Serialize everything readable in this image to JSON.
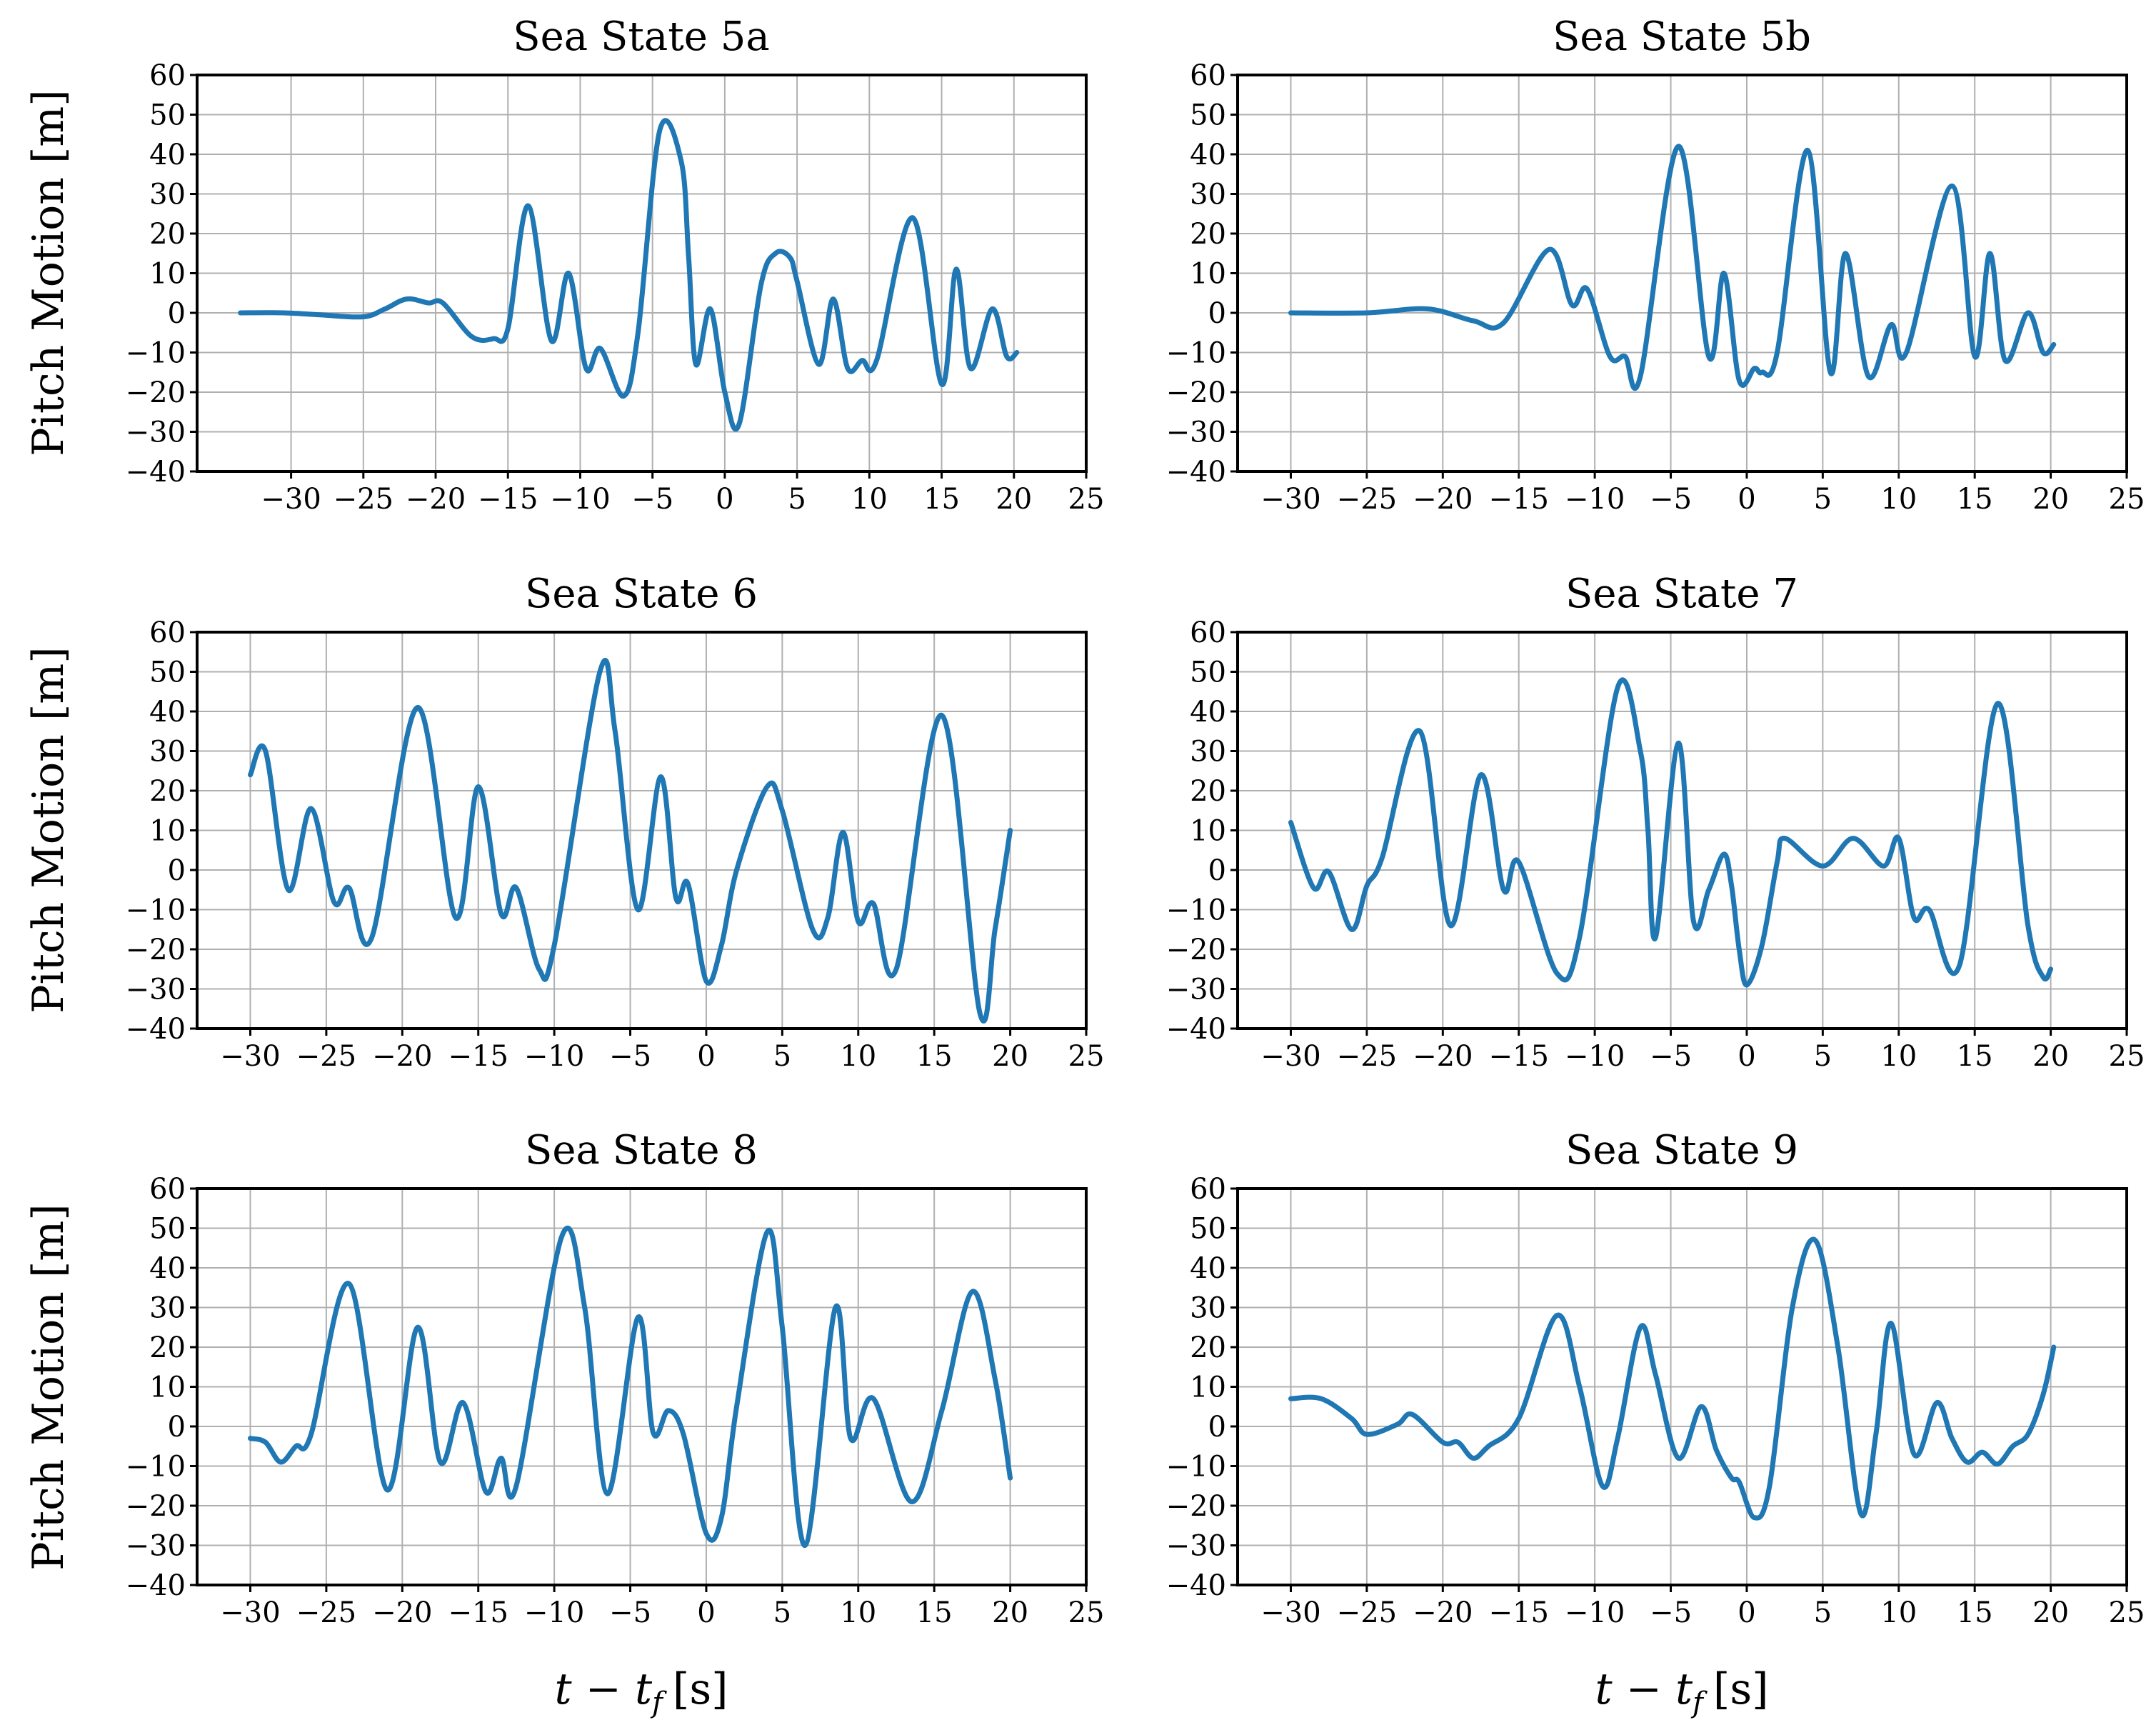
{
  "figure": {
    "ylabel": "Pitch Motion [m]",
    "xlabel": "t − t_f [s]",
    "xlabel_main": "t − t",
    "xlabel_sub": "f",
    "xlabel_units": "[s]",
    "line_color": "#1f77b4"
  },
  "chart_data": [
    {
      "type": "line",
      "title": "Sea State 5a",
      "xlim": [
        -36.5,
        25
      ],
      "ylim": [
        -40,
        60
      ],
      "xticks": [
        -30,
        -25,
        -20,
        -15,
        -10,
        -5,
        0,
        5,
        10,
        15,
        20,
        25
      ],
      "yticks": [
        -40,
        -30,
        -20,
        -10,
        0,
        10,
        20,
        30,
        40,
        50,
        60
      ],
      "grid": true,
      "series": [
        {
          "name": "pitch",
          "points": [
            [
              -33.5,
              0
            ],
            [
              -30.5,
              0
            ],
            [
              -28,
              -0.5
            ],
            [
              -25,
              -1
            ],
            [
              -23.5,
              1
            ],
            [
              -22,
              3.5
            ],
            [
              -20.5,
              2.5
            ],
            [
              -19.5,
              2.5
            ],
            [
              -17.5,
              -6
            ],
            [
              -16,
              -6.5
            ],
            [
              -15,
              -4
            ],
            [
              -13.6,
              27
            ],
            [
              -12,
              -7
            ],
            [
              -10.8,
              10
            ],
            [
              -9.6,
              -14
            ],
            [
              -8.6,
              -9
            ],
            [
              -7,
              -21
            ],
            [
              -6,
              -5
            ],
            [
              -4.5,
              46
            ],
            [
              -3,
              38
            ],
            [
              -2.5,
              14
            ],
            [
              -2,
              -13
            ],
            [
              -1,
              1
            ],
            [
              0,
              -20
            ],
            [
              1,
              -28
            ],
            [
              2.5,
              7
            ],
            [
              3.5,
              15
            ],
            [
              4.5,
              14
            ],
            [
              5,
              8
            ],
            [
              6.5,
              -13
            ],
            [
              7.5,
              3.5
            ],
            [
              8.5,
              -14
            ],
            [
              9.5,
              -12
            ],
            [
              10.5,
              -12
            ],
            [
              13,
              24
            ],
            [
              15,
              -18
            ],
            [
              16,
              11
            ],
            [
              17,
              -14
            ],
            [
              18.5,
              1
            ],
            [
              19.5,
              -11
            ],
            [
              20.2,
              -10
            ]
          ]
        }
      ]
    },
    {
      "type": "line",
      "title": "Sea State 5b",
      "xlim": [
        -33.5,
        25
      ],
      "ylim": [
        -40,
        60
      ],
      "xticks": [
        -30,
        -25,
        -20,
        -15,
        -10,
        -5,
        0,
        5,
        10,
        15,
        20,
        25
      ],
      "yticks": [
        -40,
        -30,
        -20,
        -10,
        0,
        10,
        20,
        30,
        40,
        50,
        60
      ],
      "grid": true,
      "series": [
        {
          "name": "pitch",
          "points": [
            [
              -30,
              0
            ],
            [
              -25,
              0
            ],
            [
              -21,
              1
            ],
            [
              -18,
              -2
            ],
            [
              -16,
              -2.5
            ],
            [
              -13,
              16
            ],
            [
              -11.5,
              2
            ],
            [
              -10.5,
              6
            ],
            [
              -9,
              -11
            ],
            [
              -8,
              -11
            ],
            [
              -7,
              -16
            ],
            [
              -4.5,
              42
            ],
            [
              -2.5,
              -11
            ],
            [
              -1.5,
              10
            ],
            [
              -0.5,
              -17
            ],
            [
              0.5,
              -14
            ],
            [
              1,
              -15
            ],
            [
              2,
              -10
            ],
            [
              4,
              41
            ],
            [
              5.5,
              -15
            ],
            [
              6.5,
              15
            ],
            [
              8,
              -16
            ],
            [
              9.5,
              -3
            ],
            [
              10.5,
              -10
            ],
            [
              13.5,
              32
            ],
            [
              15,
              -11
            ],
            [
              16,
              15
            ],
            [
              17,
              -12
            ],
            [
              18.5,
              0
            ],
            [
              19.5,
              -10
            ],
            [
              20.2,
              -8
            ]
          ]
        }
      ]
    },
    {
      "type": "line",
      "title": "Sea State 6",
      "xlim": [
        -33.5,
        25
      ],
      "ylim": [
        -40,
        60
      ],
      "xticks": [
        -30,
        -25,
        -20,
        -15,
        -10,
        -5,
        0,
        5,
        10,
        15,
        20,
        25
      ],
      "yticks": [
        -40,
        -30,
        -20,
        -10,
        0,
        10,
        20,
        30,
        40,
        50,
        60
      ],
      "grid": true,
      "series": [
        {
          "name": "pitch",
          "points": [
            [
              -30,
              24
            ],
            [
              -29,
              30
            ],
            [
              -27.5,
              -5
            ],
            [
              -26,
              15.5
            ],
            [
              -24.5,
              -8
            ],
            [
              -23.5,
              -4.5
            ],
            [
              -22,
              -17
            ],
            [
              -19,
              41
            ],
            [
              -16.5,
              -12
            ],
            [
              -15,
              21
            ],
            [
              -13.5,
              -11
            ],
            [
              -12.5,
              -4.5
            ],
            [
              -11,
              -25
            ],
            [
              -10,
              -19
            ],
            [
              -7,
              50
            ],
            [
              -6,
              35
            ],
            [
              -4.5,
              -10
            ],
            [
              -3,
              23.5
            ],
            [
              -2,
              -7
            ],
            [
              -1.2,
              -3.5
            ],
            [
              0,
              -28
            ],
            [
              1,
              -19
            ],
            [
              2,
              0
            ],
            [
              4,
              21
            ],
            [
              5,
              15
            ],
            [
              7,
              -15
            ],
            [
              8,
              -12
            ],
            [
              9,
              9.5
            ],
            [
              10,
              -13
            ],
            [
              11,
              -8.5
            ],
            [
              12.5,
              -25
            ],
            [
              15.5,
              39
            ],
            [
              18,
              -36
            ],
            [
              19,
              -15
            ],
            [
              20,
              10
            ]
          ]
        }
      ]
    },
    {
      "type": "line",
      "title": "Sea State 7",
      "xlim": [
        -33.5,
        25
      ],
      "ylim": [
        -40,
        60
      ],
      "xticks": [
        -30,
        -25,
        -20,
        -15,
        -10,
        -5,
        0,
        5,
        10,
        15,
        20,
        25
      ],
      "yticks": [
        -40,
        -30,
        -20,
        -10,
        0,
        10,
        20,
        30,
        40,
        50,
        60
      ],
      "grid": true,
      "series": [
        {
          "name": "pitch",
          "points": [
            [
              -30,
              12
            ],
            [
              -28.5,
              -4.5
            ],
            [
              -27.5,
              -0.5
            ],
            [
              -26,
              -15
            ],
            [
              -25,
              -4
            ],
            [
              -24,
              3
            ],
            [
              -21.5,
              35
            ],
            [
              -19.5,
              -14
            ],
            [
              -17.5,
              24
            ],
            [
              -16,
              -5
            ],
            [
              -15,
              2
            ],
            [
              -12.5,
              -26
            ],
            [
              -11,
              -17
            ],
            [
              -8.5,
              46
            ],
            [
              -7,
              30
            ],
            [
              -6.5,
              10
            ],
            [
              -6,
              -17
            ],
            [
              -4.5,
              32
            ],
            [
              -3.5,
              -13
            ],
            [
              -2.5,
              -5
            ],
            [
              -1.5,
              4
            ],
            [
              -1,
              -4
            ],
            [
              -0.5,
              -20
            ],
            [
              0,
              -29
            ],
            [
              1,
              -19
            ],
            [
              2,
              2
            ],
            [
              2.5,
              8
            ],
            [
              5,
              1
            ],
            [
              7,
              8
            ],
            [
              9,
              1
            ],
            [
              10,
              8
            ],
            [
              11,
              -12
            ],
            [
              12,
              -10
            ],
            [
              14,
              -24
            ],
            [
              16.5,
              42
            ],
            [
              18.5,
              -14
            ],
            [
              19.5,
              -27
            ],
            [
              20,
              -25
            ]
          ]
        }
      ]
    },
    {
      "type": "line",
      "title": "Sea State 8",
      "xlim": [
        -33.5,
        25
      ],
      "ylim": [
        -40,
        60
      ],
      "xticks": [
        -30,
        -25,
        -20,
        -15,
        -10,
        -5,
        0,
        5,
        10,
        15,
        20,
        25
      ],
      "yticks": [
        -40,
        -30,
        -20,
        -10,
        0,
        10,
        20,
        30,
        40,
        50,
        60
      ],
      "grid": true,
      "series": [
        {
          "name": "pitch",
          "points": [
            [
              -30,
              -3
            ],
            [
              -29,
              -4
            ],
            [
              -28,
              -9
            ],
            [
              -27,
              -5
            ],
            [
              -26,
              -2
            ],
            [
              -23.5,
              36
            ],
            [
              -21,
              -16
            ],
            [
              -19,
              25
            ],
            [
              -17.5,
              -9
            ],
            [
              -16,
              6
            ],
            [
              -14.5,
              -16.5
            ],
            [
              -13.5,
              -8
            ],
            [
              -12.5,
              -15
            ],
            [
              -9.5,
              48
            ],
            [
              -8,
              30
            ],
            [
              -6.5,
              -17
            ],
            [
              -4.5,
              27.5
            ],
            [
              -3.5,
              -1.5
            ],
            [
              -2.5,
              4
            ],
            [
              -1.5,
              -2
            ],
            [
              0,
              -27
            ],
            [
              1,
              -23
            ],
            [
              2,
              5
            ],
            [
              4,
              49
            ],
            [
              5,
              25
            ],
            [
              6.5,
              -30
            ],
            [
              8.5,
              30
            ],
            [
              9.5,
              -3
            ],
            [
              11,
              7
            ],
            [
              13.5,
              -19
            ],
            [
              15.5,
              4
            ],
            [
              17.5,
              34
            ],
            [
              19,
              12
            ],
            [
              20,
              -13
            ]
          ]
        }
      ]
    },
    {
      "type": "line",
      "title": "Sea State 9",
      "xlim": [
        -33.5,
        25
      ],
      "ylim": [
        -40,
        60
      ],
      "xticks": [
        -30,
        -25,
        -20,
        -15,
        -10,
        -5,
        0,
        5,
        10,
        15,
        20,
        25
      ],
      "yticks": [
        -40,
        -30,
        -20,
        -10,
        0,
        10,
        20,
        30,
        40,
        50,
        60
      ],
      "grid": true,
      "series": [
        {
          "name": "pitch",
          "points": [
            [
              -30,
              7
            ],
            [
              -28,
              7
            ],
            [
              -26,
              2
            ],
            [
              -25,
              -2
            ],
            [
              -23,
              0.5
            ],
            [
              -22,
              3
            ],
            [
              -20,
              -4
            ],
            [
              -19,
              -4
            ],
            [
              -18,
              -8
            ],
            [
              -17,
              -5
            ],
            [
              -15,
              2
            ],
            [
              -12.5,
              28
            ],
            [
              -11,
              10
            ],
            [
              -9.5,
              -15
            ],
            [
              -8.5,
              -3
            ],
            [
              -7,
              25
            ],
            [
              -6,
              13
            ],
            [
              -4.5,
              -8
            ],
            [
              -3,
              5
            ],
            [
              -2,
              -6
            ],
            [
              -1,
              -13
            ],
            [
              -0.5,
              -14
            ],
            [
              0.5,
              -23
            ],
            [
              1.5,
              -15
            ],
            [
              3,
              30
            ],
            [
              4.5,
              47
            ],
            [
              6,
              20
            ],
            [
              7.5,
              -22
            ],
            [
              8.5,
              -2
            ],
            [
              9.5,
              26
            ],
            [
              11,
              -7
            ],
            [
              12.5,
              6
            ],
            [
              13.5,
              -3
            ],
            [
              14.5,
              -9
            ],
            [
              15.5,
              -6.5
            ],
            [
              16.5,
              -9.5
            ],
            [
              17.5,
              -5
            ],
            [
              18.5,
              -2
            ],
            [
              19.5,
              8
            ],
            [
              20.2,
              20
            ]
          ]
        }
      ]
    }
  ]
}
